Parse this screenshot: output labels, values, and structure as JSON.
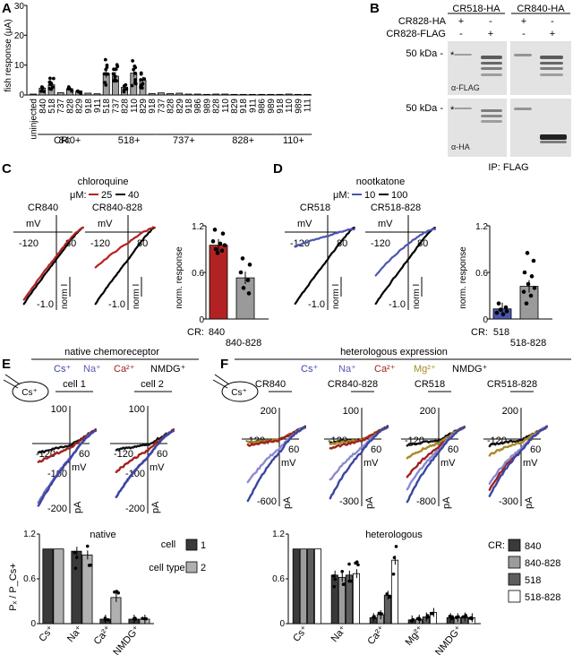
{
  "panels": {
    "A": {
      "label": "A",
      "ylabel": "fish response (μA)",
      "yticks": [
        "0",
        "10",
        "20",
        "30"
      ],
      "xlabels": [
        "uninjected",
        "840",
        "518",
        "737",
        "828",
        "829",
        "918",
        "911",
        "518",
        "737",
        "828",
        "110",
        "829",
        "918",
        "737",
        "828",
        "829",
        "918",
        "986",
        "989",
        "828",
        "110",
        "829",
        "918",
        "911",
        "986",
        "989",
        "918",
        "110",
        "989",
        "111"
      ],
      "cr_prefix": "CR:",
      "groups": [
        "840+",
        "518+",
        "737+",
        "828+",
        "110+"
      ]
    },
    "B": {
      "label": "B",
      "col1": "CR518-HA",
      "col2": "CR840-HA",
      "row1": "CR828-HA",
      "row2": "CR828-FLAG",
      "signs_row1": [
        "+",
        "-",
        "+",
        "-"
      ],
      "signs_row2": [
        "-",
        "+",
        "-",
        "+"
      ],
      "kda_top": "50 kDa -",
      "kda_bottom": "50 kDa -",
      "star": "*",
      "anti_flag": "α-FLAG",
      "anti_ha": "α-HA",
      "ip": "IP: FLAG"
    },
    "C": {
      "label": "C",
      "title": "chloroquine",
      "um": "μM:",
      "leg1": "25",
      "leg2": "40",
      "cell1": "CR840",
      "cell2": "CR840-828",
      "mv": "mV",
      "xneg": "-120",
      "xpos": "80",
      "norm": "norm I",
      "yneg": "-1.0",
      "ylabel": "norm. response",
      "yticks": [
        "0",
        "0.6",
        "1.2"
      ],
      "cr": "CR:",
      "bar1": "840",
      "bar2": "840-828"
    },
    "D": {
      "label": "D",
      "title": "nootkatone",
      "um": "μM:",
      "leg1": "10",
      "leg2": "100",
      "cell1": "CR518",
      "cell2": "CR518-828",
      "mv": "mV",
      "xneg": "-120",
      "xpos": "80",
      "norm": "norm I",
      "yneg": "-1.0",
      "ylabel": "norm. response",
      "yticks": [
        "0",
        "0.6",
        "1.2"
      ],
      "cr": "CR:",
      "bar1": "518",
      "bar2": "518-828"
    },
    "E": {
      "label": "E",
      "title": "native chemoreceptor",
      "ions": [
        "Cs⁺",
        "Na⁺",
        "Ca²⁺",
        "NMDG⁺"
      ],
      "pipette": "Cs⁺",
      "cell1": "cell 1",
      "cell2": "cell 2",
      "y100": "100",
      "yneg100": "-100",
      "yneg200": "-200",
      "xneg": "-120",
      "xpos": "60",
      "mv": "mV",
      "pa": "pA",
      "bar_title": "native",
      "legend_title": "cell type:",
      "legend": [
        "1",
        "2"
      ],
      "yticks": [
        "0",
        "0.6",
        "1.2"
      ],
      "ylabel": "Pₓ / P_Cs+",
      "xcats": [
        "Cs⁺",
        "Na⁺",
        "Ca²⁺",
        "NMDG⁺"
      ]
    },
    "F": {
      "label": "F",
      "title": "heterologous expression",
      "ions": [
        "Cs⁺",
        "Na⁺",
        "Ca²⁺",
        "Mg²⁺",
        "NMDG⁺"
      ],
      "pipette": "Cs⁺",
      "cells": [
        "CR840",
        "CR840-828",
        "CR518",
        "CR518-828"
      ],
      "ytop": [
        "200",
        "100",
        "200",
        "200"
      ],
      "ybottom": [
        "-600",
        "-300",
        "-800",
        "-300"
      ],
      "xneg": "-120",
      "xpos": "60",
      "mv": "mV",
      "pa": "pA",
      "bar_title": "heterologous",
      "legend_title": "CR:",
      "legend": [
        "840",
        "840-828",
        "518",
        "518-828"
      ],
      "yticks": [
        "0",
        "0.6",
        "1.2"
      ],
      "xcats": [
        "Cs⁺",
        "Na⁺",
        "Ca²⁺",
        "Mg²⁺",
        "NMDG⁺"
      ]
    }
  },
  "chart_data": [
    {
      "type": "bar",
      "panel": "A",
      "ylabel": "fish response (μA)",
      "ylim": [
        0,
        30
      ],
      "categories": [
        "uninjected",
        "840",
        "518",
        "737",
        "828",
        "829",
        "918",
        "911",
        "518",
        "737",
        "828",
        "110",
        "829",
        "918",
        "737",
        "828",
        "829",
        "918",
        "986",
        "989",
        "828",
        "110",
        "829",
        "918",
        "911",
        "986",
        "989",
        "918",
        "110",
        "989",
        "111"
      ],
      "values": [
        0.3,
        2.3,
        3.4,
        0.8,
        2.1,
        1.3,
        0.6,
        0.4,
        7.2,
        6.3,
        2.6,
        7.3,
        4.9,
        0.5,
        0.7,
        0.5,
        0.6,
        0.3,
        0.3,
        0.2,
        0.3,
        0.3,
        0.2,
        0.2,
        0.2,
        0.2,
        0.2,
        0.2,
        0.3,
        0.2,
        0.2
      ]
    },
    {
      "type": "bar",
      "panel": "C",
      "ylabel": "norm. response",
      "ylim": [
        0,
        1.2
      ],
      "categories": [
        "840",
        "840-828"
      ],
      "values": [
        0.95,
        0.53
      ],
      "colors": [
        "#b22222",
        "#9a9a9a"
      ]
    },
    {
      "type": "bar",
      "panel": "D",
      "ylabel": "norm. response",
      "ylim": [
        0,
        1.2
      ],
      "categories": [
        "518",
        "518-828"
      ],
      "values": [
        0.13,
        0.42
      ],
      "colors": [
        "#4b55b0",
        "#9a9a9a"
      ]
    },
    {
      "type": "bar",
      "panel": "E",
      "title": "native",
      "ylim": [
        0,
        1.2
      ],
      "categories": [
        "Cs⁺",
        "Na⁺",
        "Ca²⁺",
        "NMDG⁺"
      ],
      "series": [
        {
          "name": "1",
          "values": [
            1.0,
            0.97,
            0.06,
            0.06
          ]
        },
        {
          "name": "2",
          "values": [
            1.0,
            0.92,
            0.35,
            0.06
          ]
        }
      ]
    },
    {
      "type": "bar",
      "panel": "F",
      "title": "heterologous",
      "ylim": [
        0,
        1.2
      ],
      "categories": [
        "Cs⁺",
        "Na⁺",
        "Ca²⁺",
        "Mg²⁺",
        "NMDG⁺"
      ],
      "series": [
        {
          "name": "840",
          "values": [
            1.0,
            0.65,
            0.08,
            0.05,
            0.08
          ]
        },
        {
          "name": "840-828",
          "values": [
            1.0,
            0.62,
            0.12,
            0.06,
            0.08
          ]
        },
        {
          "name": "518",
          "values": [
            1.0,
            0.65,
            0.38,
            0.09,
            0.09
          ]
        },
        {
          "name": "518-828",
          "values": [
            1.0,
            0.67,
            0.85,
            0.15,
            0.08
          ]
        }
      ]
    }
  ]
}
